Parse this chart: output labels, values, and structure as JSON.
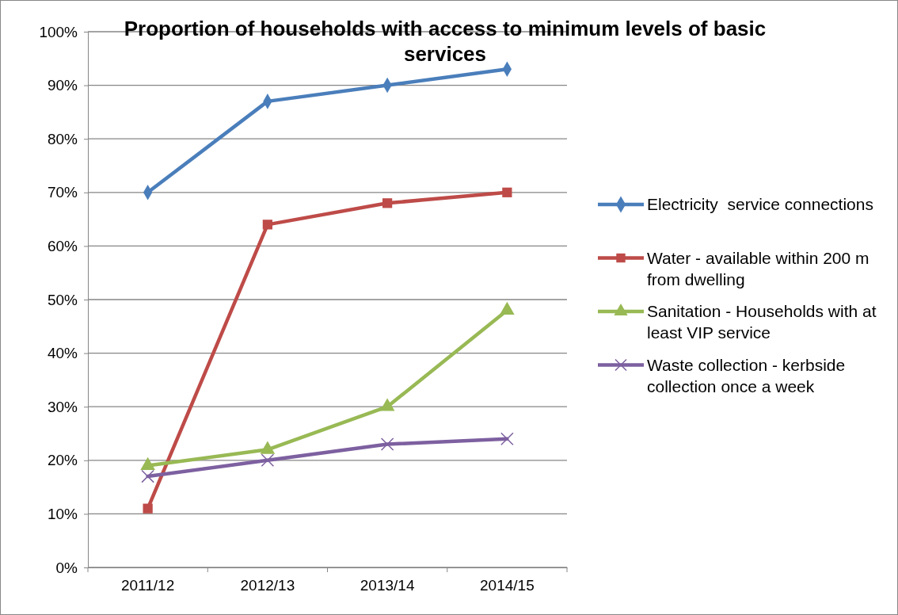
{
  "chart_data": {
    "type": "line",
    "title": "Proportion of households with access to minimum levels of basic services",
    "categories": [
      "2011/12",
      "2012/13",
      "2013/14",
      "2014/15"
    ],
    "series": [
      {
        "name": "Electricity  service connections",
        "color": "#4a7ebb",
        "marker": "diamond",
        "values": [
          70,
          87,
          90,
          93
        ]
      },
      {
        "name": "Water - available within 200 m from dwelling",
        "color": "#be4b48",
        "marker": "square",
        "values": [
          11,
          64,
          68,
          70
        ]
      },
      {
        "name": "Sanitation - Households with at least VIP service",
        "color": "#98b954",
        "marker": "triangle",
        "values": [
          19,
          22,
          30,
          48
        ]
      },
      {
        "name": "Waste collection - kerbside collection once a week",
        "color": "#7d60a0",
        "marker": "cross",
        "values": [
          17,
          20,
          23,
          24
        ]
      }
    ],
    "ylim": [
      0,
      100
    ],
    "yticks": [
      {
        "value": 0,
        "label": "0%"
      },
      {
        "value": 10,
        "label": "10%"
      },
      {
        "value": 20,
        "label": "20%"
      },
      {
        "value": 30,
        "label": "30%"
      },
      {
        "value": 40,
        "label": "40%"
      },
      {
        "value": 50,
        "label": "50%"
      },
      {
        "value": 60,
        "label": "60%"
      },
      {
        "value": 70,
        "label": "70%"
      },
      {
        "value": 80,
        "label": "80%"
      },
      {
        "value": 90,
        "label": "90%"
      },
      {
        "value": 100,
        "label": "100%"
      }
    ],
    "grid": "y",
    "legend": "right"
  }
}
